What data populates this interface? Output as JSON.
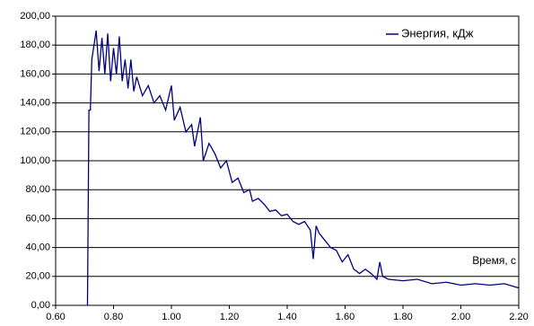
{
  "chart_data": {
    "type": "line",
    "x_label": "Время, с",
    "x": [
      0.71,
      0.715,
      0.72,
      0.725,
      0.74,
      0.75,
      0.76,
      0.77,
      0.78,
      0.79,
      0.8,
      0.81,
      0.82,
      0.83,
      0.84,
      0.85,
      0.86,
      0.87,
      0.88,
      0.9,
      0.92,
      0.94,
      0.96,
      0.98,
      1.0,
      1.01,
      1.03,
      1.05,
      1.07,
      1.08,
      1.1,
      1.11,
      1.13,
      1.15,
      1.17,
      1.19,
      1.21,
      1.23,
      1.25,
      1.27,
      1.28,
      1.3,
      1.32,
      1.34,
      1.36,
      1.38,
      1.4,
      1.42,
      1.44,
      1.46,
      1.48,
      1.49,
      1.5,
      1.51,
      1.53,
      1.55,
      1.57,
      1.59,
      1.61,
      1.63,
      1.65,
      1.67,
      1.69,
      1.71,
      1.72,
      1.73,
      1.75,
      1.8,
      1.85,
      1.9,
      1.95,
      2.0,
      2.05,
      2.1,
      2.15,
      2.2
    ],
    "series": [
      {
        "name": "Энергия, кДж",
        "color": "#000080",
        "values": [
          0,
          135,
          135,
          170,
          190,
          162,
          185,
          160,
          188,
          155,
          178,
          160,
          186,
          155,
          170,
          150,
          170,
          148,
          158,
          145,
          152,
          140,
          145,
          135,
          152,
          128,
          137,
          120,
          125,
          110,
          130,
          100,
          112,
          105,
          95,
          100,
          85,
          88,
          78,
          80,
          72,
          74,
          70,
          65,
          66,
          62,
          63,
          58,
          56,
          58,
          52,
          32,
          55,
          50,
          45,
          40,
          38,
          30,
          35,
          25,
          22,
          25,
          22,
          18,
          30,
          20,
          18,
          17,
          18,
          15,
          16,
          14,
          15,
          14,
          15,
          12
        ]
      }
    ],
    "xlim": [
      0.6,
      2.2
    ],
    "xticks": [
      {
        "value": 0.6,
        "label": "0.60"
      },
      {
        "value": 0.8,
        "label": "0.80"
      },
      {
        "value": 1.0,
        "label": "1.00"
      },
      {
        "value": 1.2,
        "label": "1.20"
      },
      {
        "value": 1.4,
        "label": "1.40"
      },
      {
        "value": 1.6,
        "label": "1.60"
      },
      {
        "value": 1.8,
        "label": "1.80"
      },
      {
        "value": 2.0,
        "label": "2.00"
      },
      {
        "value": 2.2,
        "label": "2.20"
      }
    ],
    "ylim": [
      0,
      200
    ],
    "yticks": [
      {
        "value": 0,
        "label": "0,00"
      },
      {
        "value": 20,
        "label": "20,00"
      },
      {
        "value": 40,
        "label": "40,00"
      },
      {
        "value": 60,
        "label": "60,00"
      },
      {
        "value": 80,
        "label": "80,00"
      },
      {
        "value": 100,
        "label": "100,00"
      },
      {
        "value": 120,
        "label": "120,00"
      },
      {
        "value": 140,
        "label": "140,00"
      },
      {
        "value": 160,
        "label": "160,00"
      },
      {
        "value": 180,
        "label": "180,00"
      },
      {
        "value": 200,
        "label": "200,00"
      }
    ],
    "grid": true
  }
}
